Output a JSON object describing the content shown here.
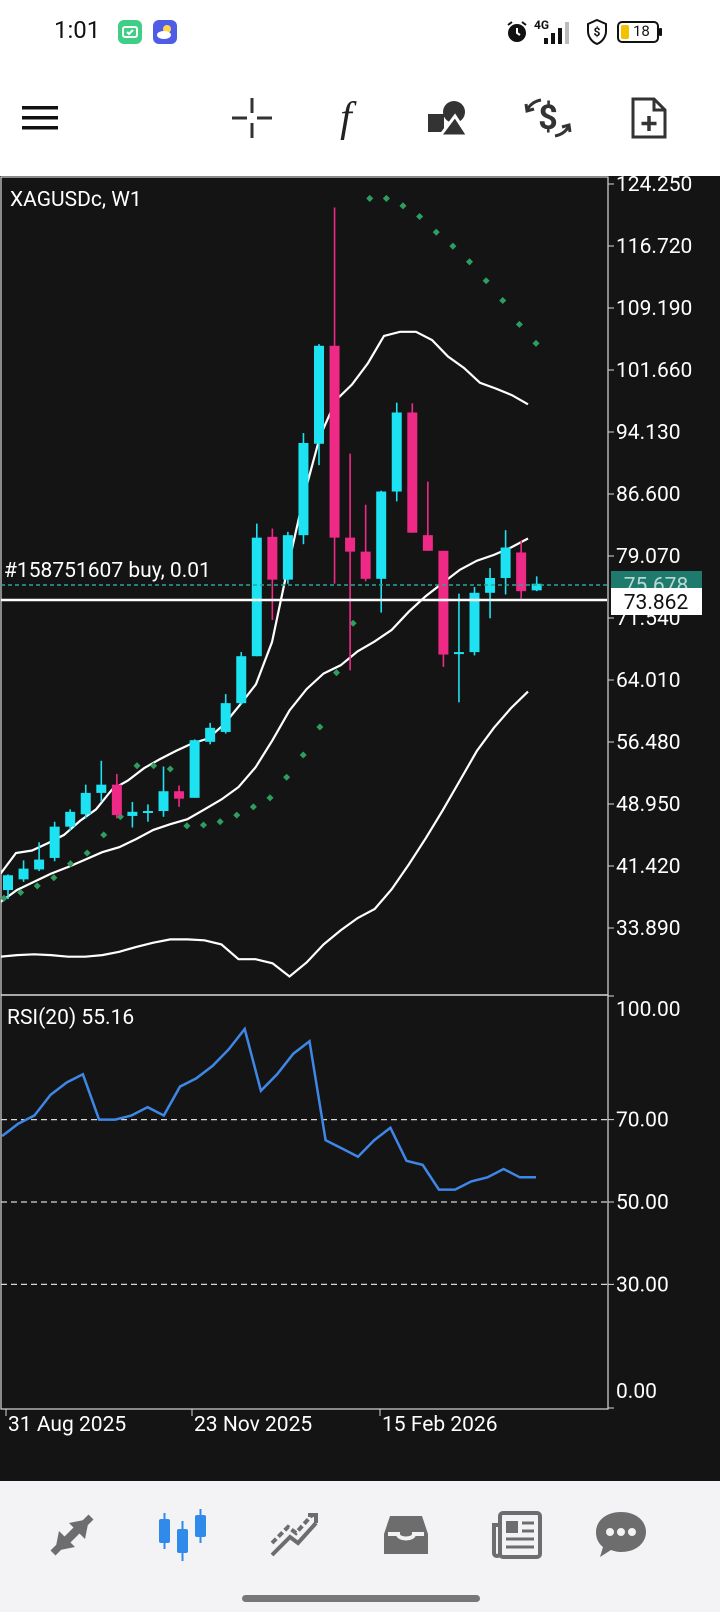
{
  "status": {
    "time": "1:01",
    "battery": "18",
    "network": "4G"
  },
  "toolbar": {
    "items": [
      "menu-icon",
      "crosshair-icon",
      "indicators-icon",
      "objects-icon",
      "trade-icon",
      "new-order-icon"
    ],
    "f_glyph": "f"
  },
  "main_chart": {
    "symbol_label": "XAGUSDc, W1",
    "order_label": "#158751607 buy, 0.01",
    "price_labels": [
      "124.250",
      "116.720",
      "109.190",
      "101.660",
      "94.130",
      "86.600",
      "79.070",
      "71.540",
      "64.010",
      "56.480",
      "48.950",
      "41.420",
      "33.890"
    ],
    "bid_price": "75.678",
    "order_price": "73.862"
  },
  "rsi": {
    "label": "RSI(20) 55.16",
    "levels": [
      "100.00",
      "70.00",
      "50.00",
      "30.00",
      "0.00"
    ]
  },
  "time_axis": [
    "31 Aug 2025",
    "23 Nov 2025",
    "15 Feb 2026"
  ],
  "chart_data": {
    "type": "candlestick",
    "title": "XAGUSDc, W1",
    "ylim": [
      29.0,
      127.0
    ],
    "candles": [
      {
        "o": 38.5,
        "h": 40.4,
        "l": 37.4,
        "c": 40.3
      },
      {
        "o": 39.8,
        "h": 42.1,
        "l": 39.5,
        "c": 41.1
      },
      {
        "o": 41.0,
        "h": 44.3,
        "l": 40.8,
        "c": 42.2
      },
      {
        "o": 42.4,
        "h": 46.8,
        "l": 42.0,
        "c": 46.2
      },
      {
        "o": 46.2,
        "h": 48.3,
        "l": 45.7,
        "c": 48.0
      },
      {
        "o": 47.7,
        "h": 51.3,
        "l": 47.2,
        "c": 50.3
      },
      {
        "o": 50.3,
        "h": 54.2,
        "l": 49.2,
        "c": 51.3
      },
      {
        "o": 51.3,
        "h": 52.6,
        "l": 47.2,
        "c": 47.6
      },
      {
        "o": 47.5,
        "h": 49.2,
        "l": 46.1,
        "c": 48.0
      },
      {
        "o": 47.9,
        "h": 48.9,
        "l": 46.8,
        "c": 48.1
      },
      {
        "o": 48.1,
        "h": 53.5,
        "l": 47.4,
        "c": 50.5
      },
      {
        "o": 50.5,
        "h": 51.2,
        "l": 48.6,
        "c": 49.6
      },
      {
        "o": 49.7,
        "h": 56.8,
        "l": 49.7,
        "c": 56.7
      },
      {
        "o": 56.5,
        "h": 58.8,
        "l": 56.2,
        "c": 58.2
      },
      {
        "o": 57.7,
        "h": 62.3,
        "l": 57.5,
        "c": 61.2
      },
      {
        "o": 61.2,
        "h": 67.4,
        "l": 61.0,
        "c": 66.9
      },
      {
        "o": 66.9,
        "h": 83.0,
        "l": 66.9,
        "c": 81.3
      },
      {
        "o": 81.4,
        "h": 82.4,
        "l": 71.3,
        "c": 76.2
      },
      {
        "o": 76.2,
        "h": 82.0,
        "l": 75.7,
        "c": 81.6
      },
      {
        "o": 81.6,
        "h": 94.0,
        "l": 80.5,
        "c": 92.8
      },
      {
        "o": 92.7,
        "h": 104.8,
        "l": 90.1,
        "c": 104.6
      },
      {
        "o": 104.6,
        "h": 121.4,
        "l": 75.7,
        "c": 81.3
      },
      {
        "o": 81.3,
        "h": 91.5,
        "l": 65.2,
        "c": 79.6
      },
      {
        "o": 79.6,
        "h": 85.3,
        "l": 76.0,
        "c": 76.3
      },
      {
        "o": 76.3,
        "h": 87.0,
        "l": 72.2,
        "c": 86.9
      },
      {
        "o": 86.9,
        "h": 97.7,
        "l": 85.7,
        "c": 96.5
      },
      {
        "o": 96.5,
        "h": 97.6,
        "l": 82.4,
        "c": 81.9
      },
      {
        "o": 81.6,
        "h": 88.1,
        "l": 79.8,
        "c": 79.7
      },
      {
        "o": 79.7,
        "h": 79.5,
        "l": 65.6,
        "c": 67.1
      },
      {
        "o": 67.2,
        "h": 74.5,
        "l": 61.3,
        "c": 67.4
      },
      {
        "o": 67.4,
        "h": 75.3,
        "l": 67.0,
        "c": 74.6
      },
      {
        "o": 74.6,
        "h": 77.6,
        "l": 71.5,
        "c": 76.4
      },
      {
        "o": 76.4,
        "h": 82.2,
        "l": 74.4,
        "c": 80.1
      },
      {
        "o": 79.5,
        "h": 80.9,
        "l": 73.9,
        "c": 74.8
      },
      {
        "o": 74.9,
        "h": 76.6,
        "l": 74.8,
        "c": 75.7
      }
    ],
    "bollinger_upper": [
      40.4,
      43.0,
      43.3,
      44.2,
      45.2,
      46.9,
      48.3,
      50.7,
      51.8,
      53.3,
      54.4,
      55.4,
      56.3,
      56.9,
      58.6,
      61.0,
      63.5,
      68.6,
      77.8,
      86.4,
      93.6,
      98.0,
      99.9,
      102.5,
      105.8,
      106.3,
      106.3,
      105.3,
      103.3,
      101.9,
      100.1,
      99.4,
      98.6,
      97.5
    ],
    "bollinger_middle": [
      37.0,
      38.5,
      39.5,
      40.5,
      41.3,
      42.2,
      43.1,
      43.7,
      44.7,
      45.8,
      46.5,
      47.1,
      48.3,
      49.5,
      51.0,
      53.4,
      56.7,
      60.3,
      62.9,
      64.8,
      65.8,
      67.5,
      68.7,
      70.1,
      72.3,
      74.2,
      75.8,
      77.4,
      78.5,
      79.2,
      80.1,
      81.2
    ],
    "bollinger_lower": [
      30.4,
      30.6,
      30.7,
      30.6,
      30.4,
      30.4,
      30.6,
      31.0,
      31.6,
      32.1,
      32.5,
      32.5,
      32.4,
      31.9,
      30.1,
      30.1,
      29.6,
      28.0,
      29.7,
      31.9,
      33.6,
      35.1,
      36.2,
      38.6,
      41.6,
      44.8,
      48.2,
      51.8,
      55.4,
      58.2,
      60.6,
      62.6
    ],
    "parabolic_sar": [
      37.5,
      38.2,
      39.0,
      40.0,
      41.7,
      43.0,
      45.2,
      47.4,
      53.6,
      53.6,
      53.2,
      46.3,
      46.4,
      46.8,
      47.6,
      48.6,
      49.7,
      52.2,
      54.9,
      58.3,
      64.9,
      70.9,
      122.5,
      122.5,
      121.6,
      120.3,
      118.4,
      116.7,
      114.8,
      112.5,
      110.1,
      107.2,
      104.9
    ],
    "rsi_values": [
      66.0,
      69.0,
      71.0,
      76.0,
      79.0,
      81.0,
      70.0,
      70.0,
      71.0,
      73.0,
      71.0,
      78.0,
      80.0,
      83.0,
      87.0,
      92.0,
      77.0,
      81.0,
      86.0,
      89.0,
      65.0,
      63.0,
      61.0,
      65.0,
      68.0,
      60.0,
      59.0,
      53.0,
      53.0,
      55.0,
      56.0,
      58.0,
      56.0,
      56.0
    ]
  }
}
